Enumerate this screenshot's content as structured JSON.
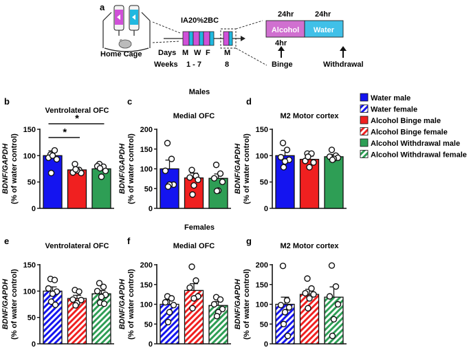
{
  "colors": {
    "water": "#1414f0",
    "binge": "#f02020",
    "withdrawal": "#2e9e55",
    "alcohol_box": "#d070d0",
    "water_box": "#40c0e8",
    "cyl_magenta": "#d050d8",
    "cyl_cyan": "#20b8e0"
  },
  "schematic": {
    "panel_letter": "a",
    "home_cage_label": "Home Cage",
    "protocol_label": "IA20%2BC",
    "days_label": "Days",
    "day_letters": [
      "M",
      "W",
      "F"
    ],
    "week8_day": "M",
    "weeks_label": "Weeks",
    "weeks_range": "1 - 7",
    "week8": "8",
    "hr_label_1": "24hr",
    "hr_label_2": "24hr",
    "alcohol_label": "Alcohol",
    "water_label": "Water",
    "binge_time": "4hr",
    "binge_label": "Binge",
    "withdrawal_label": "Withdrawal"
  },
  "section_titles": {
    "males": "Males",
    "females": "Females"
  },
  "legend": [
    {
      "label": "Water male",
      "group": "water",
      "pattern": "solid"
    },
    {
      "label": "Water female",
      "group": "water",
      "pattern": "hatch"
    },
    {
      "label": "Alcohol Binge male",
      "group": "binge",
      "pattern": "solid"
    },
    {
      "label": "Alcohol Binge female",
      "group": "binge",
      "pattern": "hatch"
    },
    {
      "label": "Alcohol Withdrawal male",
      "group": "withdrawal",
      "pattern": "solid"
    },
    {
      "label": "Alcohol Withdrawal female",
      "group": "withdrawal",
      "pattern": "hatch"
    }
  ],
  "chart_data": [
    {
      "id": "b",
      "type": "bar",
      "letter": "b",
      "title": "Ventrolateral OFC",
      "ylabel_gene": "BDNF/GAPDH",
      "ylabel_unit": "(% of water control)",
      "ylim": [
        0,
        150
      ],
      "yticks": [
        "0",
        "50",
        "100",
        "150"
      ],
      "pattern": "solid",
      "bars": [
        {
          "group": "water",
          "mean": 100,
          "sem": 9,
          "points": [
            102,
            110,
            96,
            93,
            100,
            67
          ]
        },
        {
          "group": "binge",
          "mean": 73,
          "sem": 4,
          "points": [
            84,
            73,
            68,
            67,
            72,
            74
          ]
        },
        {
          "group": "withdrawal",
          "mean": 75,
          "sem": 5,
          "points": [
            84,
            79,
            80,
            71,
            60,
            76
          ]
        }
      ],
      "significance": [
        {
          "from": 0,
          "to": 2,
          "label": "*"
        },
        {
          "from": 0,
          "to": 1,
          "label": "*"
        }
      ]
    },
    {
      "id": "c",
      "type": "bar",
      "letter": "c",
      "title": "Medial OFC",
      "ylabel_gene": "BDNF/GAPDH",
      "ylabel_unit": "(% of water control)",
      "ylim": [
        0,
        200
      ],
      "yticks": [
        "0",
        "50",
        "100",
        "150",
        "200"
      ],
      "pattern": "solid",
      "bars": [
        {
          "group": "water",
          "mean": 100,
          "sem": 22,
          "points": [
            165,
            125,
            95,
            60,
            60,
            55
          ]
        },
        {
          "group": "binge",
          "mean": 77,
          "sem": 12,
          "points": [
            97,
            82,
            78,
            72,
            58,
            35
          ]
        },
        {
          "group": "withdrawal",
          "mean": 76,
          "sem": 11,
          "points": [
            110,
            88,
            76,
            67,
            45,
            44
          ]
        }
      ],
      "significance": []
    },
    {
      "id": "d",
      "type": "bar",
      "letter": "d",
      "title": "M2 Motor cortex",
      "ylabel_gene": "BDNF/GAPDH",
      "ylabel_unit": "(% of water control)",
      "ylim": [
        0,
        150
      ],
      "yticks": [
        "0",
        "50",
        "100",
        "150"
      ],
      "pattern": "solid",
      "bars": [
        {
          "group": "water",
          "mean": 100,
          "sem": 10,
          "points": [
            124,
            111,
            97,
            92,
            89,
            78
          ]
        },
        {
          "group": "binge",
          "mean": 93,
          "sem": 6,
          "points": [
            104,
            104,
            90,
            87,
            78,
            98
          ]
        },
        {
          "group": "withdrawal",
          "mean": 98,
          "sem": 4,
          "points": [
            111,
            100,
            98,
            96,
            94,
            92
          ]
        }
      ],
      "significance": []
    },
    {
      "id": "e",
      "type": "bar",
      "letter": "e",
      "title": "Ventrolateral OFC",
      "ylabel_gene": "BDNF/GAPDH",
      "ylabel_unit": "(% of water control)",
      "ylim": [
        0,
        150
      ],
      "yticks": [
        "0",
        "50",
        "100",
        "150"
      ],
      "pattern": "hatch",
      "bars": [
        {
          "group": "water",
          "mean": 100,
          "sem": 8,
          "points": [
            123,
            121,
            105,
            99,
            95,
            80,
            74
          ]
        },
        {
          "group": "binge",
          "mean": 86,
          "sem": 6,
          "points": [
            102,
            99,
            84,
            83,
            77,
            73
          ]
        },
        {
          "group": "withdrawal",
          "mean": 95,
          "sem": 6,
          "points": [
            115,
            108,
            100,
            93,
            89,
            78,
            76
          ]
        }
      ],
      "significance": []
    },
    {
      "id": "f",
      "type": "bar",
      "letter": "f",
      "title": "Medial OFC",
      "ylabel_gene": "BDNF/GAPDH",
      "ylabel_unit": "(% of water control)",
      "ylim": [
        0,
        200
      ],
      "yticks": [
        "0",
        "50",
        "100",
        "150",
        "200"
      ],
      "pattern": "hatch",
      "bars": [
        {
          "group": "water",
          "mean": 100,
          "sem": 11,
          "points": [
            120,
            115,
            105,
            98,
            80,
            55
          ]
        },
        {
          "group": "binge",
          "mean": 135,
          "sem": 17,
          "points": [
            195,
            160,
            142,
            120,
            115,
            90
          ]
        },
        {
          "group": "withdrawal",
          "mean": 97,
          "sem": 10,
          "points": [
            118,
            112,
            100,
            88,
            80,
            70
          ]
        }
      ],
      "significance": []
    },
    {
      "id": "g",
      "type": "bar",
      "letter": "g",
      "title": "M2 Motor cortex",
      "ylabel_gene": "BDNF/GAPDH",
      "ylabel_unit": "(% of water control)",
      "ylim": [
        0,
        200
      ],
      "yticks": [
        "0",
        "50",
        "100",
        "150",
        "200"
      ],
      "pattern": "hatch",
      "bars": [
        {
          "group": "water",
          "mean": 100,
          "sem": 18,
          "points": [
            197,
            110,
            98,
            92,
            80,
            50,
            20
          ]
        },
        {
          "group": "binge",
          "mean": 125,
          "sem": 13,
          "points": [
            165,
            140,
            128,
            125,
            115,
            90
          ]
        },
        {
          "group": "withdrawal",
          "mean": 118,
          "sem": 26,
          "points": [
            198,
            145,
            120,
            100,
            62,
            20
          ]
        }
      ],
      "significance": []
    }
  ]
}
